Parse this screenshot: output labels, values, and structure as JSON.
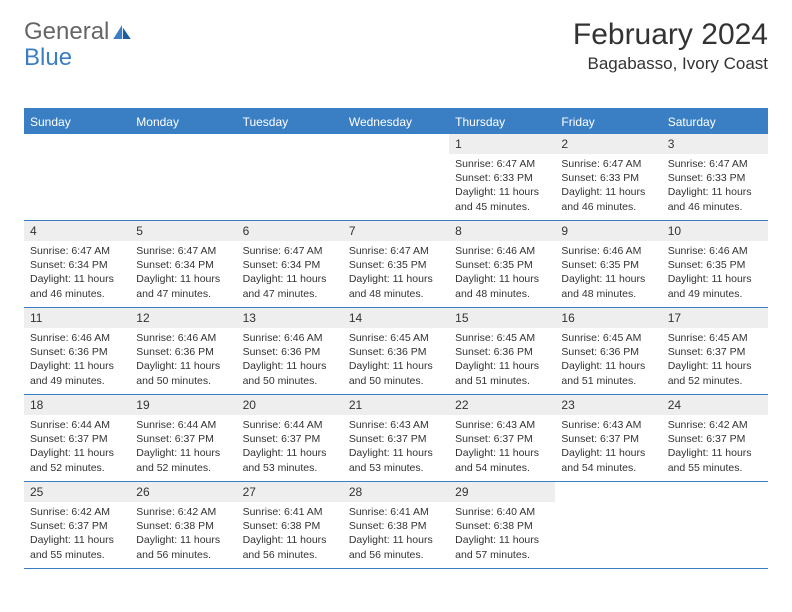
{
  "logo": {
    "text1": "General",
    "text2": "Blue"
  },
  "title": "February 2024",
  "location": "Bagabasso, Ivory Coast",
  "colors": {
    "header_bg": "#3a7fc4",
    "header_text": "#ffffff",
    "daynum_bg": "#eeeeee",
    "text": "#333333",
    "border": "#3a7fc4"
  },
  "weekdays": [
    "Sunday",
    "Monday",
    "Tuesday",
    "Wednesday",
    "Thursday",
    "Friday",
    "Saturday"
  ],
  "weeks": [
    [
      {
        "n": "",
        "sr": "",
        "ss": "",
        "dl": ""
      },
      {
        "n": "",
        "sr": "",
        "ss": "",
        "dl": ""
      },
      {
        "n": "",
        "sr": "",
        "ss": "",
        "dl": ""
      },
      {
        "n": "",
        "sr": "",
        "ss": "",
        "dl": ""
      },
      {
        "n": "1",
        "sr": "Sunrise: 6:47 AM",
        "ss": "Sunset: 6:33 PM",
        "dl": "Daylight: 11 hours and 45 minutes."
      },
      {
        "n": "2",
        "sr": "Sunrise: 6:47 AM",
        "ss": "Sunset: 6:33 PM",
        "dl": "Daylight: 11 hours and 46 minutes."
      },
      {
        "n": "3",
        "sr": "Sunrise: 6:47 AM",
        "ss": "Sunset: 6:33 PM",
        "dl": "Daylight: 11 hours and 46 minutes."
      }
    ],
    [
      {
        "n": "4",
        "sr": "Sunrise: 6:47 AM",
        "ss": "Sunset: 6:34 PM",
        "dl": "Daylight: 11 hours and 46 minutes."
      },
      {
        "n": "5",
        "sr": "Sunrise: 6:47 AM",
        "ss": "Sunset: 6:34 PM",
        "dl": "Daylight: 11 hours and 47 minutes."
      },
      {
        "n": "6",
        "sr": "Sunrise: 6:47 AM",
        "ss": "Sunset: 6:34 PM",
        "dl": "Daylight: 11 hours and 47 minutes."
      },
      {
        "n": "7",
        "sr": "Sunrise: 6:47 AM",
        "ss": "Sunset: 6:35 PM",
        "dl": "Daylight: 11 hours and 48 minutes."
      },
      {
        "n": "8",
        "sr": "Sunrise: 6:46 AM",
        "ss": "Sunset: 6:35 PM",
        "dl": "Daylight: 11 hours and 48 minutes."
      },
      {
        "n": "9",
        "sr": "Sunrise: 6:46 AM",
        "ss": "Sunset: 6:35 PM",
        "dl": "Daylight: 11 hours and 48 minutes."
      },
      {
        "n": "10",
        "sr": "Sunrise: 6:46 AM",
        "ss": "Sunset: 6:35 PM",
        "dl": "Daylight: 11 hours and 49 minutes."
      }
    ],
    [
      {
        "n": "11",
        "sr": "Sunrise: 6:46 AM",
        "ss": "Sunset: 6:36 PM",
        "dl": "Daylight: 11 hours and 49 minutes."
      },
      {
        "n": "12",
        "sr": "Sunrise: 6:46 AM",
        "ss": "Sunset: 6:36 PM",
        "dl": "Daylight: 11 hours and 50 minutes."
      },
      {
        "n": "13",
        "sr": "Sunrise: 6:46 AM",
        "ss": "Sunset: 6:36 PM",
        "dl": "Daylight: 11 hours and 50 minutes."
      },
      {
        "n": "14",
        "sr": "Sunrise: 6:45 AM",
        "ss": "Sunset: 6:36 PM",
        "dl": "Daylight: 11 hours and 50 minutes."
      },
      {
        "n": "15",
        "sr": "Sunrise: 6:45 AM",
        "ss": "Sunset: 6:36 PM",
        "dl": "Daylight: 11 hours and 51 minutes."
      },
      {
        "n": "16",
        "sr": "Sunrise: 6:45 AM",
        "ss": "Sunset: 6:36 PM",
        "dl": "Daylight: 11 hours and 51 minutes."
      },
      {
        "n": "17",
        "sr": "Sunrise: 6:45 AM",
        "ss": "Sunset: 6:37 PM",
        "dl": "Daylight: 11 hours and 52 minutes."
      }
    ],
    [
      {
        "n": "18",
        "sr": "Sunrise: 6:44 AM",
        "ss": "Sunset: 6:37 PM",
        "dl": "Daylight: 11 hours and 52 minutes."
      },
      {
        "n": "19",
        "sr": "Sunrise: 6:44 AM",
        "ss": "Sunset: 6:37 PM",
        "dl": "Daylight: 11 hours and 52 minutes."
      },
      {
        "n": "20",
        "sr": "Sunrise: 6:44 AM",
        "ss": "Sunset: 6:37 PM",
        "dl": "Daylight: 11 hours and 53 minutes."
      },
      {
        "n": "21",
        "sr": "Sunrise: 6:43 AM",
        "ss": "Sunset: 6:37 PM",
        "dl": "Daylight: 11 hours and 53 minutes."
      },
      {
        "n": "22",
        "sr": "Sunrise: 6:43 AM",
        "ss": "Sunset: 6:37 PM",
        "dl": "Daylight: 11 hours and 54 minutes."
      },
      {
        "n": "23",
        "sr": "Sunrise: 6:43 AM",
        "ss": "Sunset: 6:37 PM",
        "dl": "Daylight: 11 hours and 54 minutes."
      },
      {
        "n": "24",
        "sr": "Sunrise: 6:42 AM",
        "ss": "Sunset: 6:37 PM",
        "dl": "Daylight: 11 hours and 55 minutes."
      }
    ],
    [
      {
        "n": "25",
        "sr": "Sunrise: 6:42 AM",
        "ss": "Sunset: 6:37 PM",
        "dl": "Daylight: 11 hours and 55 minutes."
      },
      {
        "n": "26",
        "sr": "Sunrise: 6:42 AM",
        "ss": "Sunset: 6:38 PM",
        "dl": "Daylight: 11 hours and 56 minutes."
      },
      {
        "n": "27",
        "sr": "Sunrise: 6:41 AM",
        "ss": "Sunset: 6:38 PM",
        "dl": "Daylight: 11 hours and 56 minutes."
      },
      {
        "n": "28",
        "sr": "Sunrise: 6:41 AM",
        "ss": "Sunset: 6:38 PM",
        "dl": "Daylight: 11 hours and 56 minutes."
      },
      {
        "n": "29",
        "sr": "Sunrise: 6:40 AM",
        "ss": "Sunset: 6:38 PM",
        "dl": "Daylight: 11 hours and 57 minutes."
      },
      {
        "n": "",
        "sr": "",
        "ss": "",
        "dl": ""
      },
      {
        "n": "",
        "sr": "",
        "ss": "",
        "dl": ""
      }
    ]
  ]
}
